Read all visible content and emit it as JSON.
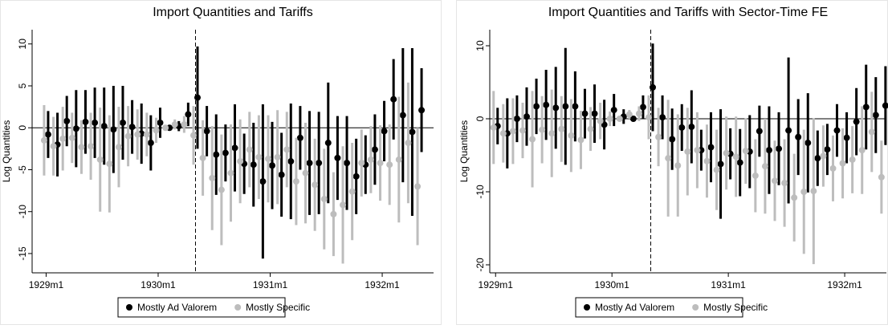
{
  "chart_data": [
    {
      "type": "errorbar",
      "title": "Import Quantities and Tariffs",
      "y_label": "Log Quantities",
      "x": [
        0,
        1,
        2,
        3,
        4,
        5,
        6,
        7,
        8,
        9,
        10,
        11,
        12,
        13,
        14,
        15,
        16,
        17,
        18,
        19,
        20,
        21,
        22,
        23,
        24,
        25,
        26,
        27,
        28,
        29,
        30,
        31,
        32,
        33,
        34,
        35,
        36,
        37,
        38,
        39,
        40
      ],
      "xlim": [
        -1.5,
        41.5
      ],
      "xticks": [
        {
          "value": 0,
          "label": "1929m1"
        },
        {
          "value": 12,
          "label": "1930m1"
        },
        {
          "value": 24,
          "label": "1931m1"
        },
        {
          "value": 36,
          "label": "1932m1"
        }
      ],
      "ylim": [
        -17.3,
        11.7
      ],
      "yticks": [
        -15,
        -10,
        -5,
        0,
        5,
        10
      ],
      "vline": 16,
      "legend": "bottom",
      "series": [
        {
          "name": "Mostly Ad Valorem",
          "color": "#000000",
          "values": [
            -0.8,
            -2.0,
            0.8,
            -0.1,
            0.7,
            0.6,
            0.2,
            -0.2,
            0.6,
            0.1,
            -0.7,
            -1.8,
            0.6,
            0.0,
            0.2,
            1.6,
            3.6,
            -0.4,
            -3.2,
            -3.0,
            -2.4,
            -4.3,
            -4.4,
            -6.4,
            -4.5,
            -5.6,
            -4.0,
            -1.2,
            -4.2,
            -4.2,
            -1.8,
            -3.6,
            -4.2,
            -5.8,
            -4.4,
            -2.6,
            -0.4,
            3.4,
            1.5,
            -0.5,
            2.1
          ],
          "errors": [
            2.8,
            3.8,
            3.0,
            4.6,
            3.8,
            4.2,
            4.6,
            5.2,
            4.4,
            3.2,
            3.6,
            3.3,
            1.8,
            0,
            0.6,
            1.4,
            6.1,
            3.0,
            4.8,
            3.4,
            5.2,
            3.6,
            5.0,
            9.2,
            5.2,
            5.0,
            6.9,
            3.8,
            6.2,
            6.1,
            7.2,
            5.0,
            5.6,
            4.5,
            3.5,
            4.2,
            3.6,
            4.8,
            8.0,
            10.0,
            5.0
          ]
        },
        {
          "name": "Mostly Specific",
          "color": "#bdbdbd",
          "values": [
            -1.5,
            -2.2,
            -1.3,
            -1.2,
            -2.3,
            -2.2,
            -3.8,
            -4.3,
            -2.3,
            -1.0,
            -0.8,
            -0.8,
            -0.3,
            0.0,
            0.4,
            0.4,
            -0.9,
            -3.6,
            -6.0,
            -7.4,
            -5.4,
            -4.0,
            -2.6,
            -3.5,
            -3.7,
            -3.5,
            -2.6,
            -6.4,
            -5.4,
            -6.8,
            -8.5,
            -10.3,
            -9.2,
            -7.6,
            -4.2,
            -3.8,
            -4.2,
            -4.4,
            -3.8,
            -1.8,
            -7.0
          ],
          "errors": [
            4.2,
            3.5,
            3.8,
            3.0,
            3.2,
            4.0,
            6.2,
            5.8,
            4.8,
            3.6,
            3.0,
            2.6,
            1.5,
            0,
            0.6,
            1.0,
            3.5,
            4.5,
            6.2,
            6.6,
            5.8,
            5.0,
            4.5,
            5.0,
            5.2,
            5.6,
            4.5,
            5.2,
            6.0,
            5.5,
            6.0,
            5.0,
            7.0,
            5.8,
            4.0,
            4.0,
            4.5,
            4.8,
            7.5,
            7.2,
            7.0
          ]
        }
      ]
    },
    {
      "type": "errorbar",
      "title": "Import Quantities and Tariffs with Sector-Time FE",
      "y_label": "Log Quantities",
      "x": [
        0,
        1,
        2,
        3,
        4,
        5,
        6,
        7,
        8,
        9,
        10,
        11,
        12,
        13,
        14,
        15,
        16,
        17,
        18,
        19,
        20,
        21,
        22,
        23,
        24,
        25,
        26,
        27,
        28,
        29,
        30,
        31,
        32,
        33,
        34,
        35,
        36,
        37,
        38,
        39,
        40
      ],
      "xlim": [
        -0.6,
        40.3
      ],
      "xticks": [
        {
          "value": 0,
          "label": "1929m1"
        },
        {
          "value": 12,
          "label": "1930m1"
        },
        {
          "value": 24,
          "label": "1931m1"
        },
        {
          "value": 36,
          "label": "1932m1"
        }
      ],
      "ylim": [
        -21.1,
        12.2
      ],
      "yticks": [
        -20,
        -10,
        0,
        10
      ],
      "vline": 16,
      "legend": "bottom",
      "series": [
        {
          "name": "Mostly Ad Valorem",
          "color": "#000000",
          "values": [
            -1.0,
            -2.0,
            0.0,
            0.3,
            1.7,
            1.9,
            1.5,
            1.7,
            1.7,
            0.7,
            0.7,
            -0.8,
            1.2,
            0.3,
            0.0,
            1.6,
            4.3,
            0.2,
            -2.8,
            -1.2,
            -1.1,
            -4.3,
            -3.9,
            -6.2,
            -4.8,
            -6.0,
            -4.5,
            -1.7,
            -4.3,
            -4.1,
            -1.6,
            -2.5,
            -3.3,
            -5.4,
            -4.2,
            -1.6,
            -2.6,
            -0.4,
            1.6,
            0.5,
            1.8
          ],
          "errors": [
            2.5,
            4.8,
            3.2,
            4.0,
            3.8,
            4.8,
            5.6,
            8.0,
            4.8,
            3.4,
            4.0,
            3.4,
            2.2,
            1.0,
            0,
            1.6,
            6.0,
            3.0,
            4.2,
            3.2,
            5.0,
            2.8,
            4.8,
            7.5,
            3.5,
            4.6,
            5.0,
            3.5,
            6.0,
            5.0,
            10.0,
            5.2,
            6.8,
            3.8,
            3.5,
            3.6,
            3.5,
            4.6,
            5.8,
            5.2,
            5.4
          ]
        },
        {
          "name": "Mostly Specific",
          "color": "#bdbdbd",
          "values": [
            -1.2,
            -2.0,
            -1.7,
            -1.6,
            -2.8,
            -1.5,
            -2.0,
            -1.4,
            -2.3,
            -2.9,
            -1.4,
            -0.3,
            0.0,
            0.0,
            0.6,
            0.7,
            0.2,
            -2.5,
            -5.4,
            -6.4,
            -4.5,
            -4.3,
            -5.8,
            -7.0,
            -4.7,
            -5.2,
            -4.4,
            -7.8,
            -6.5,
            -8.5,
            -8.8,
            -10.8,
            -10.0,
            -9.9,
            -5.1,
            -6.8,
            -6.1,
            -5.6,
            -4.3,
            -1.8,
            -8.0
          ],
          "errors": [
            5.0,
            4.0,
            4.5,
            3.8,
            6.6,
            4.6,
            6.0,
            4.5,
            5.0,
            4.0,
            3.0,
            2.5,
            1.0,
            0,
            0.6,
            1.0,
            3.0,
            4.0,
            8.0,
            7.0,
            6.0,
            5.2,
            5.0,
            5.5,
            5.0,
            5.5,
            4.5,
            5.0,
            6.5,
            5.5,
            6.0,
            6.0,
            8.5,
            10.0,
            4.2,
            4.5,
            4.8,
            4.6,
            6.0,
            5.5,
            5.0
          ]
        }
      ]
    }
  ]
}
